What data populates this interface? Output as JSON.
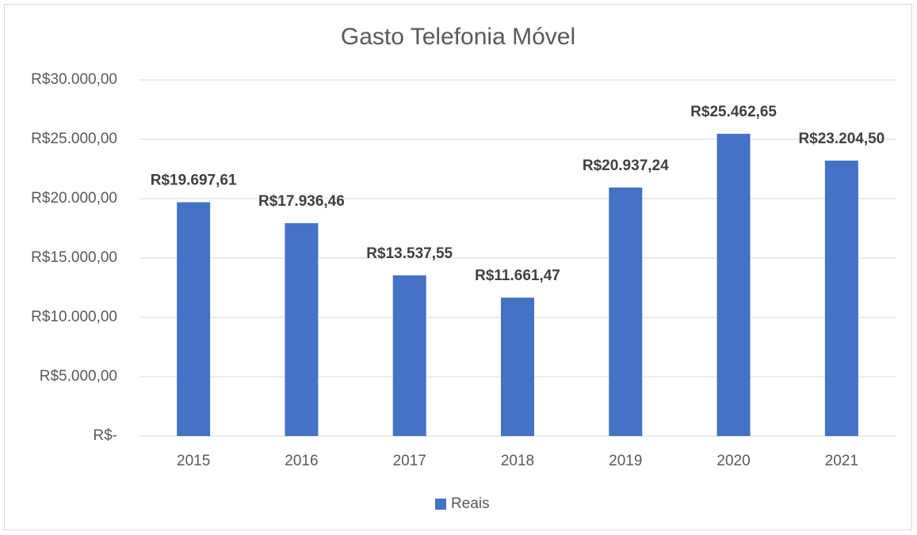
{
  "chart_data": {
    "type": "bar",
    "title": "Gasto Telefonia Móvel",
    "categories": [
      "2015",
      "2016",
      "2017",
      "2018",
      "2019",
      "2020",
      "2021"
    ],
    "series": [
      {
        "name": "Reais",
        "color": "#4472c4",
        "values": [
          19697.61,
          17936.46,
          13537.55,
          11661.47,
          20937.24,
          25462.65,
          23204.5
        ],
        "value_labels": [
          "R$19.697,61",
          "R$17.936,46",
          "R$13.537,55",
          "R$11.661,47",
          "R$20.937,24",
          "R$25.462,65",
          "R$23.204,50"
        ]
      }
    ],
    "ylim": [
      0,
      30000
    ],
    "yticks": [
      {
        "value": 0,
        "label": "R$-"
      },
      {
        "value": 5000,
        "label": "R$5.000,00"
      },
      {
        "value": 10000,
        "label": "R$10.000,00"
      },
      {
        "value": 15000,
        "label": "R$15.000,00"
      },
      {
        "value": 20000,
        "label": "R$20.000,00"
      },
      {
        "value": 25000,
        "label": "R$25.000,00"
      },
      {
        "value": 30000,
        "label": "R$30.000,00"
      }
    ],
    "grid": true,
    "legend": "bottom"
  }
}
